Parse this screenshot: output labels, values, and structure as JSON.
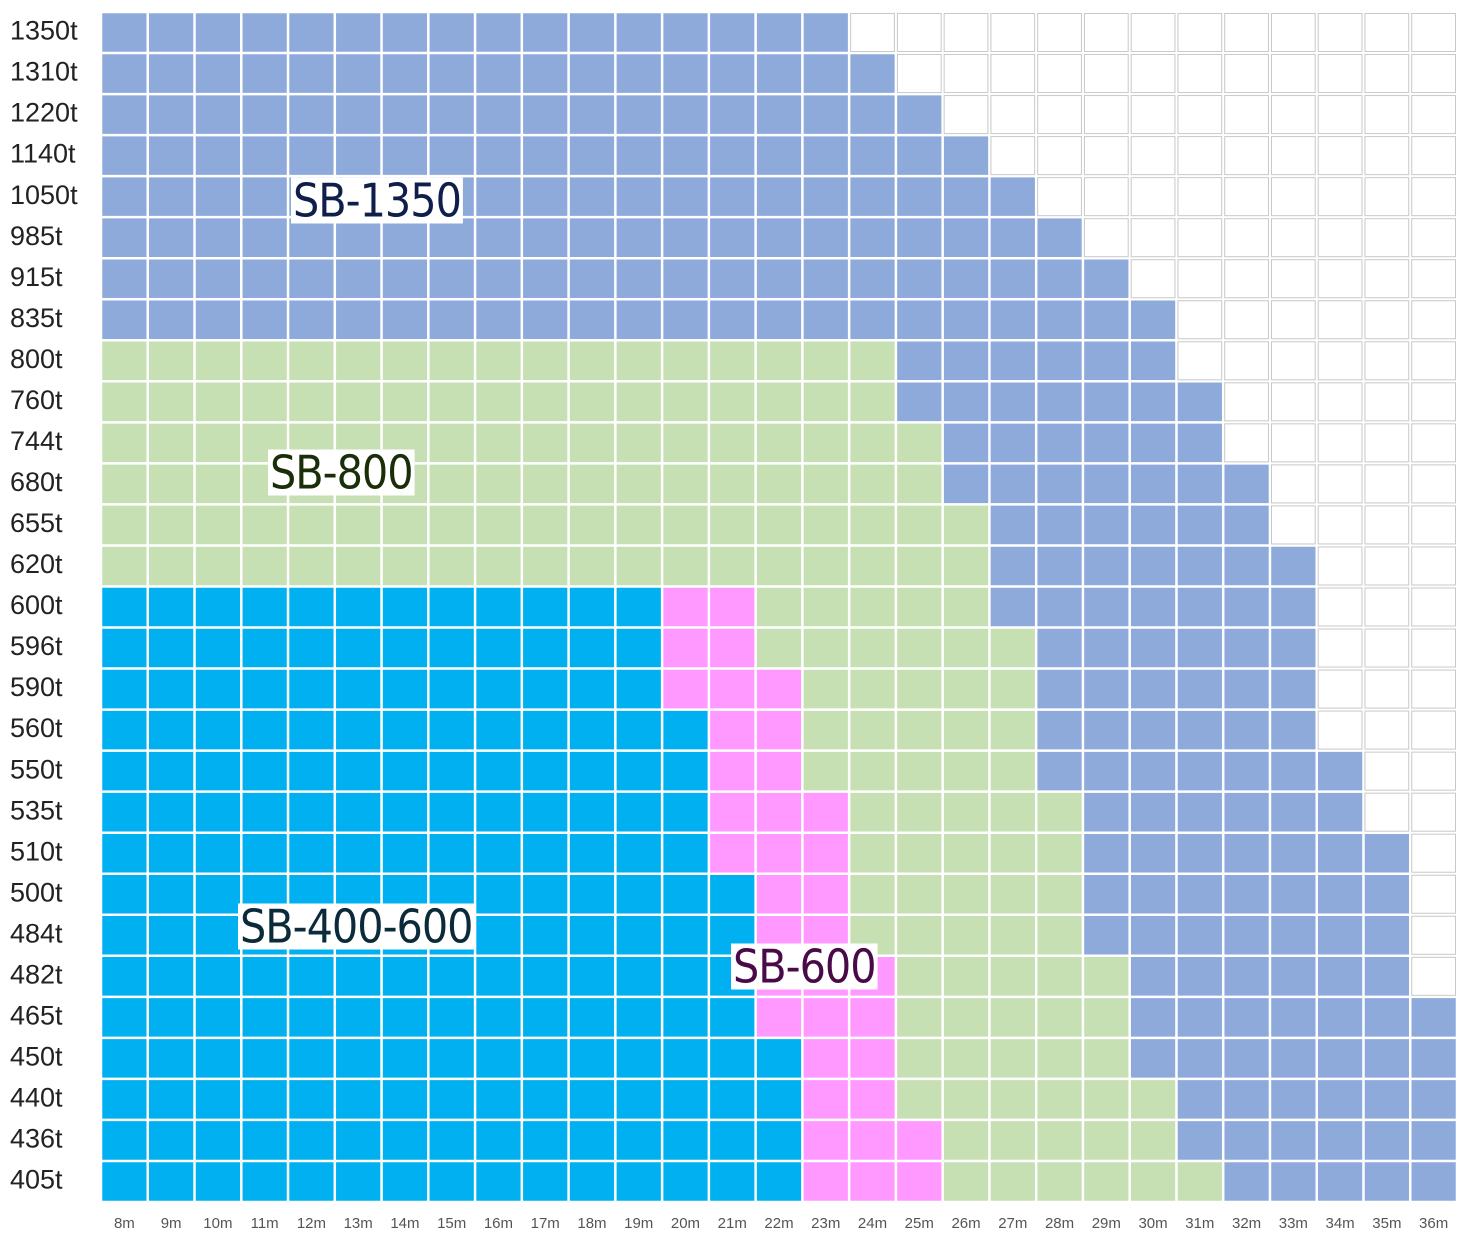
{
  "chart_data": {
    "type": "grid",
    "categories": [
      "1350t",
      "1310t",
      "1220t",
      "1140t",
      "1050t",
      "985t",
      "915t",
      "835t",
      "800t",
      "760t",
      "744t",
      "680t",
      "655t",
      "620t",
      "600t",
      "596t",
      "590t",
      "560t",
      "550t",
      "535t",
      "510t",
      "500t",
      "484t",
      "482t",
      "465t",
      "450t",
      "440t",
      "436t",
      "405t"
    ],
    "columns": [
      "8m",
      "9m",
      "10m",
      "11m",
      "12m",
      "13m",
      "14m",
      "15m",
      "16m",
      "17m",
      "18m",
      "19m",
      "20m",
      "21m",
      "22m",
      "23m",
      "24m",
      "25m",
      "26m",
      "27m",
      "28m",
      "29m",
      "30m",
      "31m",
      "32m",
      "33m",
      "34m",
      "35m",
      "36m"
    ],
    "series": [
      {
        "name": "SB-400-600",
        "color": "#00b0f0",
        "label_color": "#0b2a3a",
        "values": [
          0,
          0,
          0,
          0,
          0,
          0,
          0,
          0,
          0,
          0,
          0,
          0,
          0,
          0,
          12,
          12,
          12,
          13,
          13,
          13,
          13,
          14,
          14,
          14,
          14,
          15,
          15,
          15,
          15
        ]
      },
      {
        "name": "SB-600",
        "color": "#ff99ff",
        "label_color": "#4a0a48",
        "values": [
          0,
          0,
          0,
          0,
          0,
          0,
          0,
          0,
          0,
          0,
          0,
          0,
          0,
          0,
          2,
          2,
          3,
          2,
          2,
          3,
          3,
          2,
          2,
          3,
          3,
          2,
          2,
          3,
          3
        ]
      },
      {
        "name": "SB-800",
        "color": "#c6e0b4",
        "label_color": "#1a2e0a",
        "values": [
          0,
          0,
          0,
          0,
          0,
          0,
          0,
          0,
          17,
          17,
          18,
          18,
          19,
          19,
          5,
          6,
          5,
          5,
          5,
          5,
          5,
          5,
          5,
          5,
          5,
          5,
          6,
          5,
          6
        ]
      },
      {
        "name": "SB-1350",
        "color": "#8eaadb",
        "label_color": "#0f1f4a",
        "values": [
          16,
          17,
          18,
          19,
          20,
          21,
          22,
          23,
          6,
          7,
          6,
          7,
          6,
          7,
          7,
          6,
          6,
          6,
          7,
          6,
          7,
          7,
          7,
          6,
          7,
          7,
          6,
          6,
          5
        ]
      }
    ]
  }
}
